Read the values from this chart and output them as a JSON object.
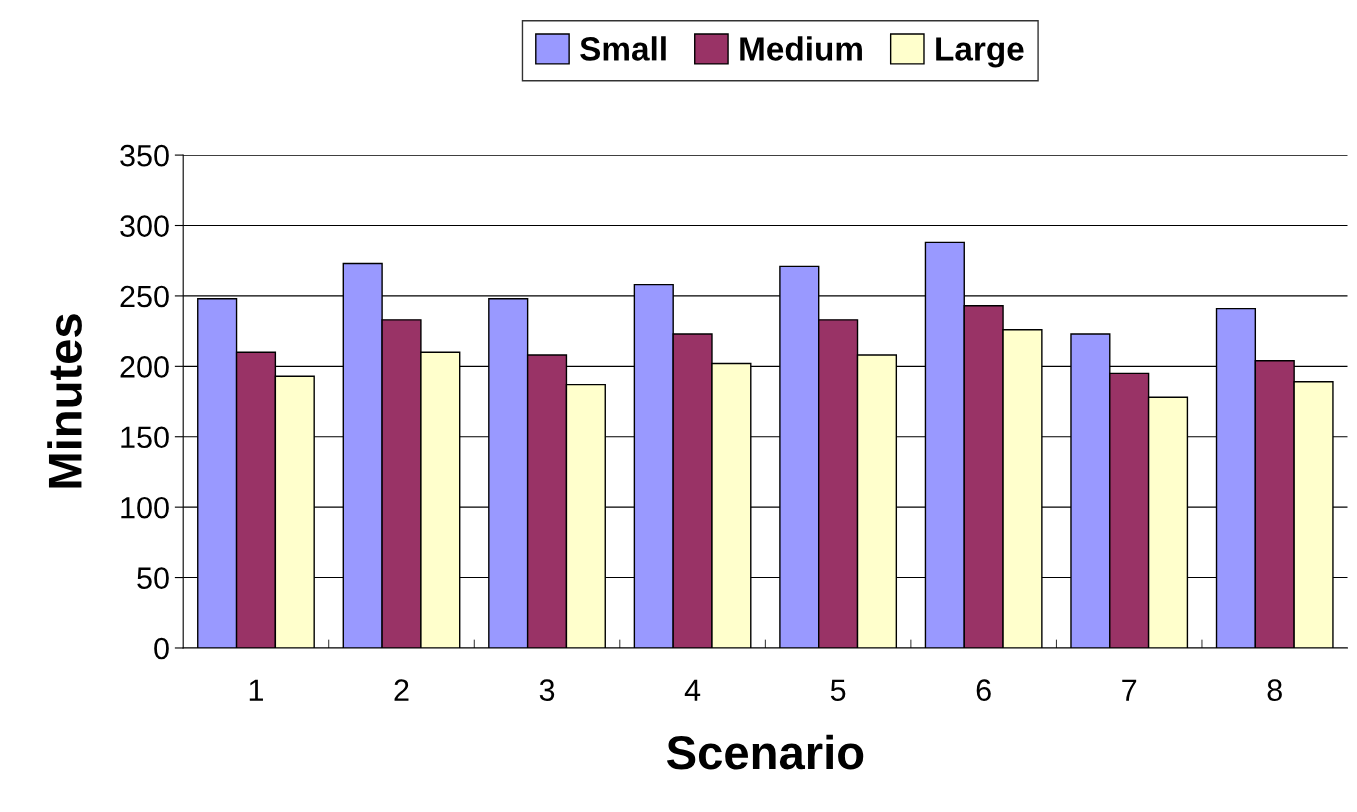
{
  "chart_data": {
    "type": "bar",
    "xlabel": "Scenario",
    "ylabel": "Minutes",
    "categories": [
      "1",
      "2",
      "3",
      "4",
      "5",
      "6",
      "7",
      "8"
    ],
    "series": [
      {
        "name": "Small",
        "color": "#9999ff",
        "values": [
          248,
          273,
          248,
          258,
          271,
          288,
          223,
          241
        ]
      },
      {
        "name": "Medium",
        "color": "#993366",
        "values": [
          210,
          233,
          208,
          223,
          233,
          243,
          195,
          204
        ]
      },
      {
        "name": "Large",
        "color": "#ffffcc",
        "values": [
          193,
          210,
          187,
          202,
          208,
          226,
          178,
          189
        ]
      }
    ],
    "ylim": [
      0,
      350
    ],
    "yticks": [
      0,
      50,
      100,
      150,
      200,
      250,
      300,
      350
    ],
    "grid": "y",
    "legend": "top"
  }
}
